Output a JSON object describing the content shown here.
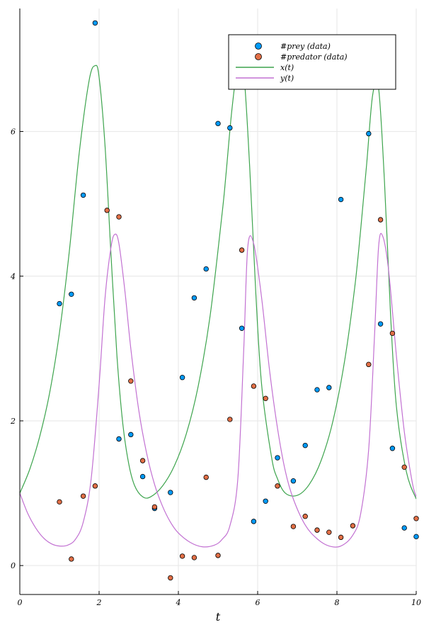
{
  "chart_data": {
    "type": "scatter",
    "title": "",
    "xlabel": "t",
    "ylabel": "",
    "xlim": [
      0,
      10
    ],
    "ylim": [
      -0.4,
      7.7
    ],
    "xticks": [
      0,
      2,
      4,
      6,
      8,
      10
    ],
    "xtick_labels": [
      "0",
      "2",
      "4",
      "6",
      "8",
      "10"
    ],
    "yticks": [
      0,
      2,
      4,
      6
    ],
    "ytick_labels": [
      "0",
      "2",
      "4",
      "6"
    ],
    "grid": true,
    "legend_position": "top-right",
    "series": [
      {
        "name": "#prey (data)",
        "kind": "scatter",
        "color": "#009AFA",
        "x": [
          1.0,
          1.3,
          1.6,
          1.9,
          2.5,
          2.8,
          3.1,
          3.4,
          3.8,
          4.1,
          4.4,
          4.7,
          5.0,
          5.3,
          5.6,
          5.9,
          6.2,
          6.5,
          6.9,
          7.2,
          7.5,
          7.8,
          8.1,
          8.8,
          9.1,
          9.4,
          9.7,
          10.0
        ],
        "y": [
          3.62,
          3.75,
          5.12,
          7.5,
          1.75,
          1.81,
          1.23,
          0.79,
          1.01,
          2.6,
          3.7,
          4.1,
          6.11,
          6.05,
          3.28,
          0.61,
          0.89,
          1.49,
          1.17,
          1.66,
          2.43,
          2.46,
          5.06,
          5.97,
          3.34,
          1.62,
          0.52,
          0.4
        ]
      },
      {
        "name": "#predator (data)",
        "kind": "scatter",
        "color": "#E26F46",
        "x": [
          1.0,
          1.3,
          1.6,
          1.9,
          2.2,
          2.5,
          2.8,
          3.1,
          3.4,
          3.8,
          4.1,
          4.4,
          4.7,
          5.0,
          5.3,
          5.6,
          5.9,
          6.2,
          6.5,
          6.9,
          7.2,
          7.5,
          7.8,
          8.1,
          8.4,
          8.8,
          9.1,
          9.4,
          9.7,
          10.0
        ],
        "y": [
          0.88,
          0.09,
          0.96,
          1.1,
          4.91,
          4.82,
          2.55,
          1.45,
          0.81,
          -0.17,
          0.13,
          0.11,
          1.22,
          0.14,
          2.02,
          4.36,
          2.48,
          2.31,
          1.1,
          0.54,
          0.68,
          0.49,
          0.46,
          0.39,
          0.55,
          2.78,
          4.78,
          3.21,
          1.36,
          0.65
        ]
      },
      {
        "name": "x(t)",
        "kind": "line",
        "color": "#3DA44D",
        "x": [
          0,
          0.25,
          0.5,
          0.75,
          1.0,
          1.25,
          1.5,
          1.75,
          1.9,
          2.0,
          2.15,
          2.3,
          2.45,
          2.6,
          2.75,
          2.9,
          3.1,
          3.3,
          3.6,
          3.9,
          4.2,
          4.5,
          4.8,
          5.1,
          5.2,
          5.35,
          5.5,
          5.65,
          5.8,
          5.95,
          6.1,
          6.35,
          6.5,
          6.7,
          7.0,
          7.3,
          7.6,
          7.9,
          8.2,
          8.45,
          8.6,
          8.75,
          8.9,
          9.05,
          9.2,
          9.35,
          9.5,
          9.75,
          10.0
        ],
        "y": [
          1.0,
          1.33,
          1.78,
          2.38,
          3.22,
          4.35,
          5.71,
          6.71,
          6.91,
          6.75,
          5.8,
          4.3,
          2.9,
          1.95,
          1.4,
          1.1,
          0.95,
          0.95,
          1.1,
          1.38,
          1.82,
          2.48,
          3.45,
          4.85,
          5.4,
          6.3,
          6.9,
          6.8,
          5.5,
          3.8,
          2.5,
          1.5,
          1.2,
          1.0,
          0.97,
          1.12,
          1.45,
          2.0,
          2.85,
          3.85,
          4.65,
          5.55,
          6.5,
          6.6,
          5.3,
          3.5,
          2.2,
          1.3,
          0.92
        ]
      },
      {
        "name": "y(t)",
        "kind": "line",
        "color": "#C271D2",
        "x": [
          0,
          0.2,
          0.4,
          0.6,
          0.8,
          1.0,
          1.2,
          1.4,
          1.6,
          1.8,
          2.0,
          2.15,
          2.3,
          2.4,
          2.5,
          2.65,
          2.8,
          3.0,
          3.2,
          3.4,
          3.6,
          3.8,
          4.0,
          4.3,
          4.6,
          4.9,
          5.1,
          5.3,
          5.5,
          5.65,
          5.75,
          5.9,
          6.1,
          6.3,
          6.5,
          6.7,
          6.9,
          7.2,
          7.5,
          7.8,
          8.1,
          8.4,
          8.6,
          8.8,
          8.95,
          9.05,
          9.15,
          9.3,
          9.5,
          9.7,
          9.9,
          10.0
        ],
        "y": [
          1.0,
          0.72,
          0.52,
          0.38,
          0.3,
          0.27,
          0.28,
          0.36,
          0.6,
          1.2,
          2.5,
          3.7,
          4.4,
          4.58,
          4.45,
          3.8,
          3.0,
          2.15,
          1.55,
          1.12,
          0.82,
          0.6,
          0.45,
          0.32,
          0.26,
          0.28,
          0.36,
          0.55,
          1.2,
          3.0,
          4.4,
          4.45,
          3.7,
          2.7,
          1.9,
          1.3,
          0.92,
          0.56,
          0.37,
          0.27,
          0.27,
          0.42,
          0.72,
          1.6,
          3.2,
          4.4,
          4.56,
          4.1,
          2.9,
          1.85,
          1.15,
          0.95
        ]
      }
    ]
  }
}
